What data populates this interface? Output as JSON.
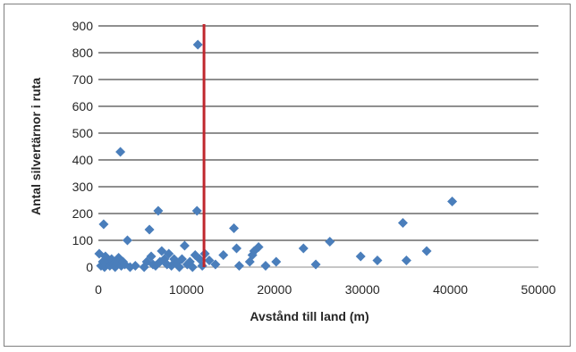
{
  "chart_data": {
    "type": "scatter",
    "xlabel": "Avstånd till land (m)",
    "ylabel": "Antal silvertärnor i ruta",
    "xlim": [
      0,
      50000
    ],
    "ylim": [
      0,
      900
    ],
    "xticks": [
      0,
      10000,
      20000,
      30000,
      40000,
      50000
    ],
    "yticks": [
      0,
      100,
      200,
      300,
      400,
      500,
      600,
      700,
      800,
      900
    ],
    "x_tick_labels": [
      "0",
      "10000",
      "20000",
      "30000",
      "40000",
      "50000"
    ],
    "y_tick_labels": [
      "0",
      "100",
      "200",
      "300",
      "400",
      "500",
      "600",
      "700",
      "800",
      "900"
    ],
    "grid": "horizontal",
    "legend": "none",
    "marker_color": "#4a7ebb",
    "reference_line": {
      "x": 12000,
      "color": "#c0272d"
    },
    "series": [
      {
        "points": [
          [
            100,
            50
          ],
          [
            300,
            5
          ],
          [
            500,
            20
          ],
          [
            700,
            0
          ],
          [
            800,
            40
          ],
          [
            900,
            10
          ],
          [
            600,
            160
          ],
          [
            1100,
            25
          ],
          [
            1300,
            5
          ],
          [
            1500,
            30
          ],
          [
            1700,
            10
          ],
          [
            1900,
            0
          ],
          [
            2100,
            15
          ],
          [
            2300,
            35
          ],
          [
            2500,
            430
          ],
          [
            2600,
            5
          ],
          [
            2800,
            20
          ],
          [
            3000,
            10
          ],
          [
            3300,
            100
          ],
          [
            3600,
            0
          ],
          [
            4200,
            5
          ],
          [
            5200,
            0
          ],
          [
            5500,
            20
          ],
          [
            5800,
            140
          ],
          [
            6000,
            40
          ],
          [
            6200,
            10
          ],
          [
            6500,
            5
          ],
          [
            6800,
            210
          ],
          [
            7000,
            20
          ],
          [
            7200,
            60
          ],
          [
            7500,
            30
          ],
          [
            7800,
            10
          ],
          [
            8000,
            50
          ],
          [
            8300,
            5
          ],
          [
            8600,
            30
          ],
          [
            8900,
            15
          ],
          [
            9200,
            0
          ],
          [
            9500,
            30
          ],
          [
            9800,
            80
          ],
          [
            10100,
            10
          ],
          [
            10400,
            20
          ],
          [
            10700,
            0
          ],
          [
            11000,
            45
          ],
          [
            11200,
            210
          ],
          [
            11300,
            830
          ],
          [
            11500,
            30
          ],
          [
            11800,
            5
          ],
          [
            12100,
            50
          ],
          [
            12600,
            25
          ],
          [
            13300,
            10
          ],
          [
            14200,
            45
          ],
          [
            15400,
            145
          ],
          [
            15700,
            70
          ],
          [
            16000,
            5
          ],
          [
            17200,
            20
          ],
          [
            17500,
            45
          ],
          [
            17700,
            60
          ],
          [
            18200,
            75
          ],
          [
            19000,
            5
          ],
          [
            20200,
            20
          ],
          [
            23300,
            70
          ],
          [
            24700,
            10
          ],
          [
            26300,
            95
          ],
          [
            29800,
            40
          ],
          [
            31700,
            25
          ],
          [
            34600,
            165
          ],
          [
            35000,
            25
          ],
          [
            37300,
            60
          ],
          [
            40200,
            245
          ]
        ]
      }
    ]
  }
}
